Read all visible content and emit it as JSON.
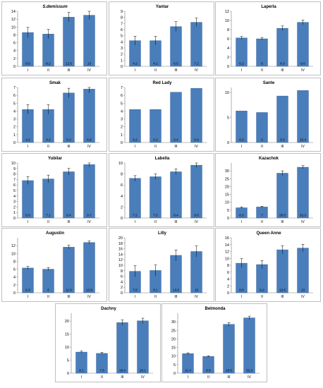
{
  "chart_data": [
    {
      "type": "bar",
      "title": "S.demissum",
      "categories": [
        "I",
        "II",
        "III",
        "IV"
      ],
      "values": [
        8.6,
        8.2,
        12.5,
        13
      ],
      "errors": [
        1.3,
        1.2,
        1.2,
        1.1
      ],
      "data_labels": [
        "8.6",
        "8.2",
        "12.5",
        "13"
      ],
      "ylim": [
        0,
        14
      ],
      "yticks": [
        0,
        2,
        4,
        6,
        8,
        10,
        12,
        14
      ]
    },
    {
      "type": "bar",
      "title": "Yantar",
      "categories": [
        "I",
        "II",
        "III",
        "IV"
      ],
      "values": [
        4.2,
        4.2,
        6.5,
        7.2
      ],
      "errors": [
        0.7,
        0.7,
        0.8,
        0.7
      ],
      "data_labels": [
        "4.2",
        "4.2",
        "6.5",
        "7.2"
      ],
      "ylim": [
        0,
        9
      ],
      "yticks": [
        0,
        1,
        2,
        3,
        4,
        5,
        6,
        7,
        8,
        9
      ]
    },
    {
      "type": "bar",
      "title": "Laperla",
      "categories": [
        "I",
        "II",
        "III",
        "IV"
      ],
      "values": [
        6.2,
        6,
        8.3,
        9.6
      ],
      "errors": [
        0.3,
        0.3,
        0.5,
        0.5
      ],
      "data_labels": [
        "6.2",
        "6",
        "8.3",
        "9.6"
      ],
      "ylim": [
        0,
        12
      ],
      "yticks": [
        0,
        2,
        4,
        6,
        8,
        10,
        12
      ]
    },
    {
      "type": "bar",
      "title": "Smak",
      "categories": [
        "I",
        "II",
        "III",
        "IV"
      ],
      "values": [
        4.2,
        4.2,
        6.3,
        6.8
      ],
      "errors": [
        0.6,
        0.6,
        0.6,
        0.5
      ],
      "data_labels": [
        "4.2",
        "4.2",
        "6.3",
        "6.8"
      ],
      "ylim": [
        0,
        7
      ],
      "yticks": [
        0,
        1,
        2,
        3,
        4,
        5,
        6,
        7
      ]
    },
    {
      "type": "bar",
      "title": "Red Lady",
      "categories": [
        "I",
        "II",
        "III",
        "IV"
      ],
      "values": [
        4.2,
        4.2,
        6.4,
        6.9
      ],
      "errors": [
        0,
        0,
        0,
        0
      ],
      "data_labels": [
        "4.2",
        "4.2",
        "6.4",
        "6.9"
      ],
      "ylim": [
        0,
        7
      ],
      "yticks": [
        0,
        1,
        2,
        3,
        4,
        5,
        6,
        7
      ]
    },
    {
      "type": "bar",
      "title": "Sante",
      "categories": [
        "I",
        "II",
        "III",
        "IV"
      ],
      "values": [
        6.3,
        6,
        9.3,
        10.4
      ],
      "errors": [
        0,
        0,
        0,
        0
      ],
      "data_labels": [
        "6.3",
        "6",
        "9.3",
        "10.4"
      ],
      "ylim": [
        0,
        11
      ],
      "yticks": [
        0,
        5,
        10
      ]
    },
    {
      "type": "bar",
      "title": "Yubilar",
      "categories": [
        "I",
        "II",
        "III",
        "IV"
      ],
      "values": [
        6.8,
        7.1,
        8.4,
        9.7
      ],
      "errors": [
        0.7,
        0.7,
        0.6,
        0.4
      ],
      "data_labels": [
        "6.8",
        "7.1",
        "8.4",
        "9.7"
      ],
      "ylim": [
        0,
        10
      ],
      "yticks": [
        0,
        1,
        2,
        3,
        4,
        5,
        6,
        7,
        8,
        9,
        10
      ]
    },
    {
      "type": "bar",
      "title": "Labella",
      "categories": [
        "I",
        "II",
        "III",
        "IV"
      ],
      "values": [
        7.2,
        7.5,
        8.4,
        9.6
      ],
      "errors": [
        0.5,
        0.5,
        0.5,
        0.4
      ],
      "data_labels": [
        "7.2",
        "7.5",
        "8.4",
        "9.6"
      ],
      "ylim": [
        0,
        10
      ],
      "yticks": [
        0,
        2,
        4,
        6,
        8,
        10
      ]
    },
    {
      "type": "bar",
      "title": "Kazachok",
      "categories": [
        "I",
        "II",
        "III",
        "IV"
      ],
      "values": [
        6.5,
        7,
        28.5,
        32.3
      ],
      "errors": [
        0.5,
        0.5,
        1.5,
        1.0
      ],
      "data_labels": [
        "6.5",
        "7",
        "28.5",
        "32.3"
      ],
      "ylim": [
        0,
        35
      ],
      "yticks": [
        0,
        5,
        10,
        15,
        20,
        25,
        30
      ]
    },
    {
      "type": "bar",
      "title": "Augustin",
      "categories": [
        "I",
        "II",
        "III",
        "IV"
      ],
      "values": [
        6.3,
        6,
        11.6,
        12.8
      ],
      "errors": [
        0.4,
        0.4,
        0.5,
        0.4
      ],
      "data_labels": [
        "6.3",
        "6",
        "11.6",
        "12.8"
      ],
      "ylim": [
        0,
        14
      ],
      "yticks": [
        0,
        2,
        4,
        6,
        8,
        10,
        12
      ]
    },
    {
      "type": "bar",
      "title": "Lilly",
      "categories": [
        "I",
        "II",
        "III",
        "IV"
      ],
      "values": [
        7.8,
        8.1,
        13.6,
        15
      ],
      "errors": [
        2.0,
        2.0,
        2.0,
        2.0
      ],
      "data_labels": [
        "7.8",
        "8.1",
        "13.6",
        "15"
      ],
      "ylim": [
        0,
        20
      ],
      "yticks": [
        0,
        2,
        4,
        6,
        8,
        10,
        12,
        14,
        16,
        18,
        20
      ]
    },
    {
      "type": "bar",
      "title": "Queen Anne",
      "categories": [
        "I",
        "II",
        "III",
        "IV"
      ],
      "values": [
        8.6,
        8.2,
        12.5,
        13
      ],
      "errors": [
        1.3,
        1.2,
        1.2,
        1.1
      ],
      "data_labels": [
        "8.6",
        "8.2",
        "12.5",
        "13"
      ],
      "ylim": [
        0,
        16
      ],
      "yticks": [
        0,
        2,
        4,
        6,
        8,
        10,
        12,
        14,
        16
      ]
    },
    {
      "type": "bar",
      "title": "Dachny",
      "categories": [
        "I",
        "II",
        "III",
        "IV"
      ],
      "values": [
        8.1,
        7.6,
        19.4,
        20.1
      ],
      "errors": [
        0.4,
        0.4,
        1.0,
        1.0
      ],
      "data_labels": [
        "8.1",
        "7.6",
        "19.4",
        "20.1"
      ],
      "ylim": [
        0,
        23
      ],
      "yticks": [
        0,
        5,
        10,
        15,
        20
      ]
    },
    {
      "type": "bar",
      "title": "Belmonda",
      "categories": [
        "I",
        "II",
        "III",
        "IV"
      ],
      "values": [
        11.4,
        9.8,
        28.5,
        32.3
      ],
      "errors": [
        0.5,
        0.4,
        1.0,
        1.0
      ],
      "data_labels": [
        "11.4",
        "9.8",
        "28.5",
        "32.3"
      ],
      "ylim": [
        0,
        35
      ],
      "yticks": [
        0,
        5,
        10,
        15,
        20,
        25,
        30
      ]
    }
  ],
  "colors": {
    "bar": "#4a7ebb",
    "bar_edge": "#2e5a94",
    "axis": "#7f7f7f",
    "panel_border": "#bfbfbf"
  }
}
